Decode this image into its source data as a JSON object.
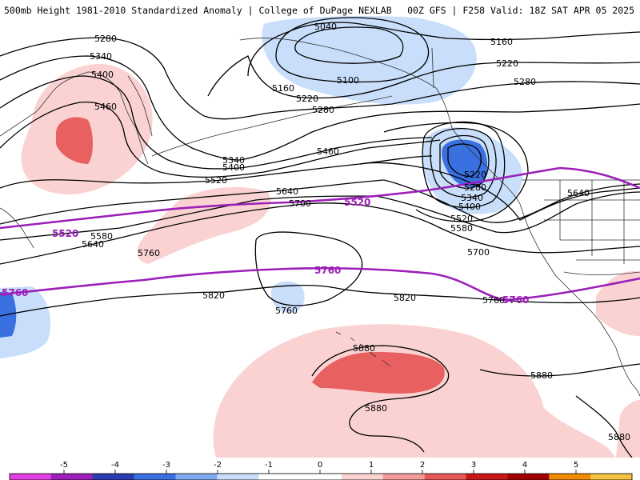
{
  "header": {
    "title_left": "500mb Height 1981-2010 Standardized Anomaly | College of DuPage NEXLAB",
    "title_right": "00Z GFS | F258 Valid: 18Z SAT APR 05 2025"
  },
  "height_labels": [
    "5040",
    "5100",
    "5160",
    "5220",
    "5280",
    "5340",
    "5400",
    "5460",
    "5520",
    "5580",
    "5640",
    "5700",
    "5760",
    "5820",
    "5880"
  ],
  "map_labels": {
    "h5280_a": "5280",
    "h5340_a": "5340",
    "h5400_a": "5400",
    "h5460_a": "5460",
    "h5040": "5040",
    "h5100": "5100",
    "h5160_a": "5160",
    "h5220_a": "5220",
    "h5280_b": "5280",
    "h5160_b": "5160",
    "h5220_b": "5220",
    "h5280_c": "5280",
    "h5340_b": "5340",
    "h5400_b": "5400",
    "h5460_b": "5460",
    "h5520_a": "5520",
    "h5640_a": "5640",
    "h5700_a": "5700",
    "h5580_a": "5580",
    "h5640_b": "5640",
    "h5760_a": "5760",
    "h5760_b": "5760",
    "h5820_a": "5820",
    "h5820_b": "5820",
    "h5220_c": "5220",
    "h5280_d": "5280",
    "h5340_c": "5340",
    "h5400_c": "5400",
    "h5520_b": "5520",
    "h5580_b": "5580",
    "h5700_b": "5700",
    "h5640_c": "5640",
    "h5760_c": "5760",
    "h5880_a": "5880",
    "h5880_b": "5880",
    "h5880_c": "5880",
    "h5880_d": "5880",
    "p5520_a": "5520",
    "p5520_b": "5520",
    "p5760_a": "5760",
    "p5760_b": "5760",
    "p5760_c": "5760"
  },
  "colorbar": {
    "ticks": [
      "-5",
      "-4",
      "-3",
      "-2",
      "-1",
      "0",
      "1",
      "2",
      "3",
      "4",
      "5"
    ],
    "colors": [
      "#e040e0",
      "#9b1fb8",
      "#2a3db0",
      "#3a6fe0",
      "#7fa9f0",
      "#c8defa",
      "#ffffff",
      "#ffffff",
      "#fad2d2",
      "#f39a9a",
      "#e85858",
      "#c81818",
      "#a00000",
      "#f08a00",
      "#f6c040"
    ]
  }
}
